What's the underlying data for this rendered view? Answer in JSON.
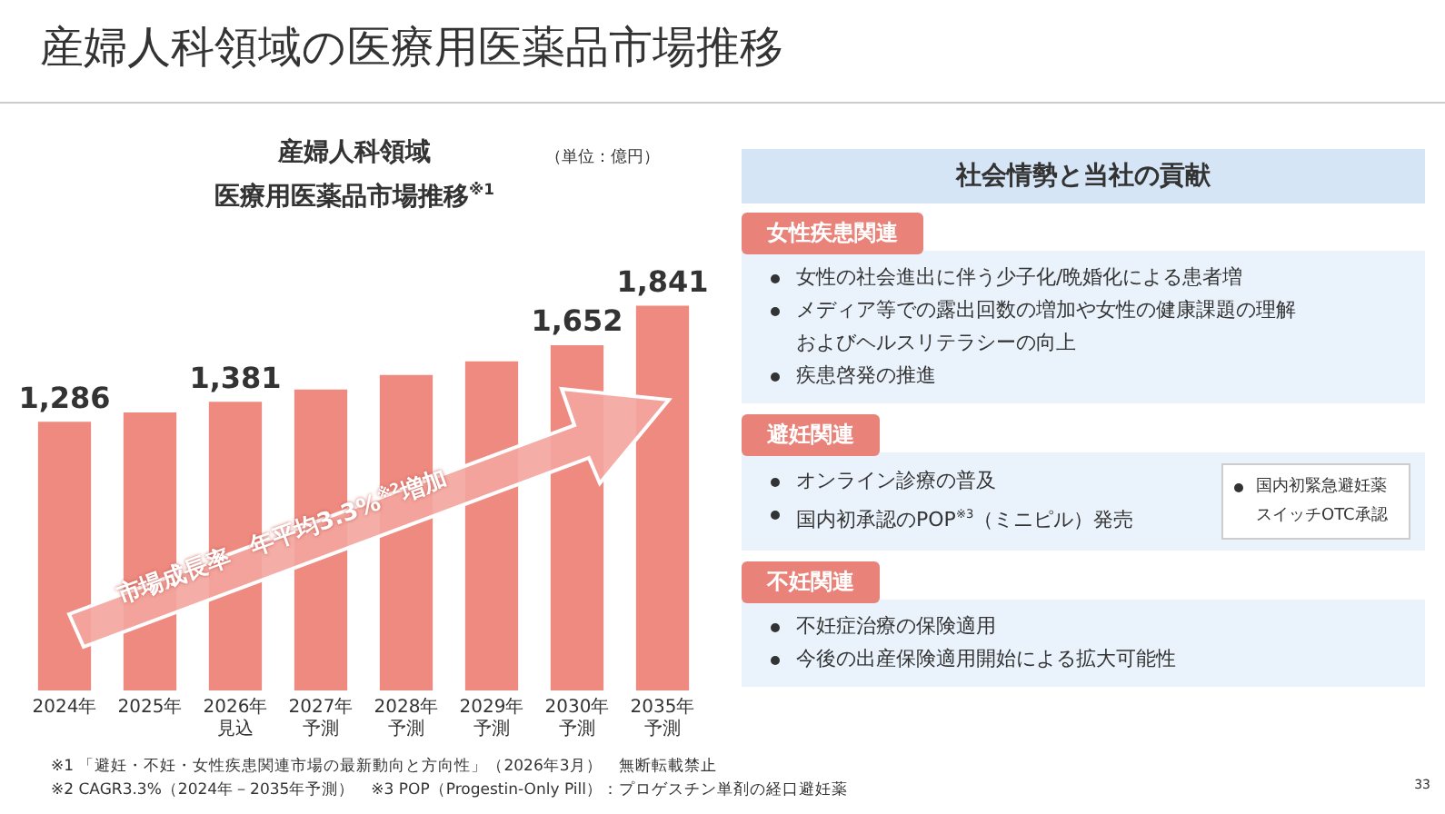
{
  "chart_data": [
    {
      "type": "bar",
      "title": "産婦人科領域の医療用医薬品市場推移",
      "subtitle": "産婦人科領域",
      "categories": [
        "2024年",
        "2025年",
        "2026年見込",
        "2027年予測",
        "2028年予測",
        "2029年予測",
        "2030年予測",
        "2035年予測"
      ],
      "values": [
        1286,
        1330,
        1381,
        1440,
        1510,
        1575,
        1652,
        1841
      ],
      "value_labels": [
        "1,286",
        null,
        "1,381",
        null,
        null,
        null,
        "1,652",
        "1,841"
      ],
      "color": "#ee8a80",
      "grid": false,
      "legend": false,
      "annotations": [
        "（単位：億円）",
        "医療用医薬品市場推移$^{※1}$",
        "市場成長率　年平均3.3%$^{※2}$増加",
        "※1 「避妊・不妊・女性疾患関連市場の最新動向と方向性」（2026年3月）　無断転載禁止",
        "※2 CAGR3.3%（2024年－2035年予測）　※3 POP（Progestin-Only Pill）：プロゲスチン単剤の経口避妊薬",
        "33"
      ]
    },
    {
      "type": "other",
      "title": "社会情勢と当社の貢献",
      "subtitle": "女性疾患関連",
      "annotations": [
        "女性の社会進出に伴う少子化/晩婚化による患者増",
        "メディア等での露出回数の増加や女性の健康課題の理解およびヘルスリテラシーの向上",
        "疾患啓発の推進"
      ]
    },
    {
      "type": "other",
      "title": "避妊関連",
      "annotations": [
        "オンライン診療の普及",
        "国内初承認のPOP$^{※3}$（ミニピル）発売",
        "国内初緊急避妊薬スイッチOTC承認"
      ]
    },
    {
      "type": "other",
      "title": "不妊関連",
      "annotations": [
        "不妊症治療の保険適用",
        "今後の出産保険適用開始による拡大可能性"
      ]
    }
  ]
}
